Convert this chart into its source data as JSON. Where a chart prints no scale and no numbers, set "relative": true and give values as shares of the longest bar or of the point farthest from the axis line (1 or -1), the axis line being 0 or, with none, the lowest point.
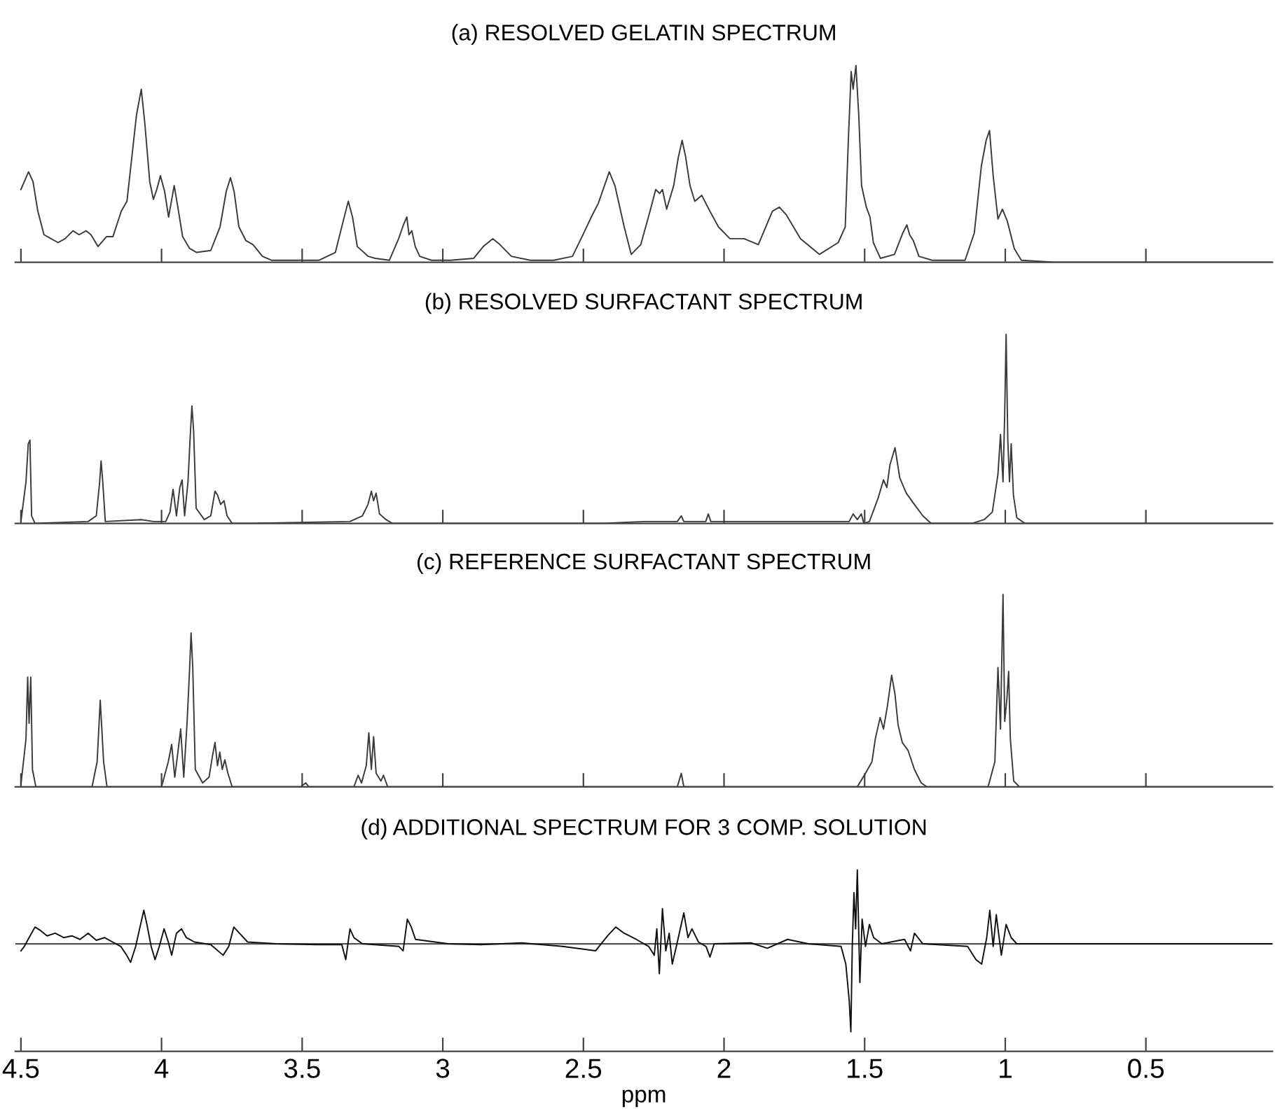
{
  "chart_data": [
    {
      "type": "line",
      "title": "(a) RESOLVED GELATIN SPECTRUM",
      "relative": true,
      "xlim": [
        4.52,
        0.05
      ],
      "xticks": [
        4.5,
        4,
        3.5,
        3,
        2.5,
        2,
        1.5,
        1,
        0.5
      ],
      "tick_labels": false,
      "x": [
        4.5,
        4.473,
        4.457,
        4.44,
        4.418,
        4.393,
        4.368,
        4.343,
        4.315,
        4.293,
        4.268,
        4.251,
        4.226,
        4.196,
        4.173,
        4.143,
        4.123,
        4.109,
        4.089,
        4.072,
        4.059,
        4.042,
        4.029,
        4.017,
        4.004,
        3.989,
        3.975,
        3.955,
        3.942,
        3.925,
        3.9,
        3.875,
        3.825,
        3.792,
        3.77,
        3.755,
        3.742,
        3.725,
        3.7,
        3.675,
        3.641,
        3.608,
        3.441,
        3.382,
        3.354,
        3.336,
        3.321,
        3.304,
        3.265,
        3.24,
        3.19,
        3.157,
        3.14,
        3.128,
        3.12,
        3.11,
        3.098,
        3.082,
        3.04,
        2.973,
        2.89,
        2.856,
        2.822,
        2.797,
        2.756,
        2.689,
        2.605,
        2.539,
        2.505,
        2.472,
        2.447,
        2.408,
        2.388,
        2.355,
        2.33,
        2.296,
        2.263,
        2.243,
        2.229,
        2.219,
        2.204,
        2.179,
        2.163,
        2.149,
        2.137,
        2.121,
        2.104,
        2.079,
        2.054,
        2.02,
        1.979,
        1.929,
        1.878,
        1.828,
        1.803,
        1.778,
        1.728,
        1.661,
        1.594,
        1.569,
        1.558,
        1.548,
        1.541,
        1.531,
        1.521,
        1.511,
        1.494,
        1.481,
        1.469,
        1.444,
        1.394,
        1.364,
        1.35,
        1.34,
        1.327,
        1.307,
        1.26,
        1.143,
        1.11,
        1.085,
        1.068,
        1.056,
        1.043,
        1.026,
        1.01,
        0.993,
        0.968,
        0.943,
        0.826,
        0.05
      ],
      "series": [
        {
          "color": "#3a3a3a",
          "values": [
            0.37,
            0.46,
            0.41,
            0.26,
            0.14,
            0.12,
            0.1,
            0.12,
            0.16,
            0.14,
            0.16,
            0.14,
            0.08,
            0.13,
            0.13,
            0.26,
            0.31,
            0.49,
            0.75,
            0.88,
            0.7,
            0.41,
            0.32,
            0.37,
            0.44,
            0.36,
            0.23,
            0.39,
            0.28,
            0.13,
            0.07,
            0.05,
            0.06,
            0.18,
            0.36,
            0.43,
            0.36,
            0.18,
            0.11,
            0.09,
            0.03,
            0.01,
            0.01,
            0.05,
            0.21,
            0.31,
            0.23,
            0.08,
            0.03,
            0.02,
            0.01,
            0.12,
            0.19,
            0.23,
            0.14,
            0.16,
            0.08,
            0.03,
            0.01,
            0.01,
            0.02,
            0.08,
            0.12,
            0.09,
            0.03,
            0.01,
            0.01,
            0.03,
            0.13,
            0.23,
            0.3,
            0.46,
            0.39,
            0.18,
            0.04,
            0.09,
            0.26,
            0.37,
            0.35,
            0.37,
            0.27,
            0.39,
            0.53,
            0.62,
            0.54,
            0.39,
            0.31,
            0.34,
            0.27,
            0.18,
            0.12,
            0.12,
            0.09,
            0.26,
            0.28,
            0.24,
            0.12,
            0.04,
            0.1,
            0.18,
            0.62,
            0.97,
            0.88,
            1.0,
            0.75,
            0.39,
            0.28,
            0.23,
            0.1,
            0.02,
            0.04,
            0.15,
            0.19,
            0.14,
            0.11,
            0.03,
            0.01,
            0.01,
            0.15,
            0.49,
            0.62,
            0.67,
            0.44,
            0.22,
            0.27,
            0.21,
            0.07,
            0.01,
            0,
            0
          ]
        }
      ]
    },
    {
      "type": "line",
      "title": "(b) RESOLVED SURFACTANT SPECTRUM",
      "relative": true,
      "xlim": [
        4.52,
        0.05
      ],
      "xticks": [
        4.5,
        4,
        3.5,
        3,
        2.5,
        2,
        1.5,
        1,
        0.5
      ],
      "tick_labels": false,
      "x": [
        4.5,
        4.482,
        4.474,
        4.468,
        4.462,
        4.45,
        4.261,
        4.232,
        4.22,
        4.215,
        4.209,
        4.2,
        4.072,
        4.028,
        3.985,
        3.97,
        3.959,
        3.947,
        3.935,
        3.927,
        3.918,
        3.906,
        3.897,
        3.892,
        3.886,
        3.877,
        3.848,
        3.825,
        3.81,
        3.801,
        3.79,
        3.778,
        3.767,
        3.749,
        3.679,
        3.33,
        3.286,
        3.266,
        3.254,
        3.246,
        3.237,
        3.225,
        3.202,
        3.179,
        2.428,
        2.283,
        2.166,
        2.152,
        2.143,
        2.065,
        2.056,
        2.047,
        1.701,
        1.555,
        1.541,
        1.526,
        1.512,
        1.503,
        1.483,
        1.453,
        1.433,
        1.421,
        1.41,
        1.392,
        1.375,
        1.352,
        1.323,
        1.293,
        1.264,
        1.119,
        1.075,
        1.046,
        1.026,
        1.017,
        1.008,
        1.002,
        0.997,
        0.991,
        0.985,
        0.979,
        0.971,
        0.959,
        0.93,
        0.05
      ],
      "series": [
        {
          "color": "#3a3a3a",
          "values": [
            0.01,
            0.22,
            0.42,
            0.44,
            0.04,
            0,
            0.01,
            0.04,
            0.22,
            0.33,
            0.22,
            0.01,
            0.02,
            0.01,
            0.01,
            0.06,
            0.18,
            0.04,
            0.19,
            0.23,
            0.04,
            0.22,
            0.49,
            0.62,
            0.49,
            0.08,
            0.02,
            0.04,
            0.17,
            0.15,
            0.1,
            0.12,
            0.04,
            0,
            0,
            0.01,
            0.04,
            0.1,
            0.17,
            0.12,
            0.16,
            0.05,
            0.02,
            0,
            0,
            0.01,
            0.01,
            0.04,
            0.01,
            0.01,
            0.05,
            0.01,
            0.01,
            0.01,
            0.05,
            0.02,
            0.05,
            0,
            0.01,
            0.13,
            0.23,
            0.19,
            0.31,
            0.4,
            0.24,
            0.16,
            0.1,
            0.04,
            0,
            0,
            0.02,
            0.06,
            0.26,
            0.47,
            0.22,
            0.58,
            1.0,
            0.44,
            0.22,
            0.42,
            0.15,
            0.03,
            0,
            0
          ]
        }
      ]
    },
    {
      "type": "line",
      "title": "(c) REFERENCE SURFACTANT SPECTRUM",
      "relative": true,
      "xlim": [
        4.52,
        0.05
      ],
      "xticks": [
        4.5,
        4,
        3.5,
        3,
        2.5,
        2,
        1.5,
        1,
        0.5
      ],
      "tick_labels": false,
      "x": [
        4.5,
        4.482,
        4.476,
        4.471,
        4.465,
        4.459,
        4.447,
        4.247,
        4.229,
        4.218,
        4.206,
        4.194,
        4.0,
        3.976,
        3.964,
        3.953,
        3.941,
        3.932,
        3.921,
        3.909,
        3.9,
        3.895,
        3.889,
        3.88,
        3.854,
        3.831,
        3.819,
        3.81,
        3.801,
        3.793,
        3.784,
        3.775,
        3.764,
        3.749,
        3.505,
        3.487,
        3.476,
        3.316,
        3.301,
        3.289,
        3.272,
        3.263,
        3.254,
        3.246,
        3.237,
        3.22,
        3.211,
        3.196,
        2.166,
        2.152,
        2.143,
        1.526,
        1.497,
        1.474,
        1.462,
        1.445,
        1.433,
        1.419,
        1.404,
        1.392,
        1.381,
        1.366,
        1.346,
        1.323,
        1.299,
        1.279,
        1.061,
        1.037,
        1.026,
        1.017,
        1.008,
        1.002,
        0.994,
        0.988,
        0.982,
        0.97,
        0.95,
        0.05
      ],
      "series": [
        {
          "color": "#3a3a3a",
          "values": [
            0.01,
            0.25,
            0.57,
            0.33,
            0.57,
            0.09,
            0,
            0,
            0.13,
            0.45,
            0.13,
            0,
            0,
            0.13,
            0.22,
            0.05,
            0.19,
            0.3,
            0.05,
            0.34,
            0.62,
            0.8,
            0.62,
            0.09,
            0.02,
            0.05,
            0.16,
            0.23,
            0.11,
            0.18,
            0.09,
            0.14,
            0.07,
            0,
            0,
            0.02,
            0,
            0,
            0.06,
            0.02,
            0.11,
            0.28,
            0.09,
            0.26,
            0.07,
            0.03,
            0.06,
            0,
            0,
            0.07,
            0,
            0,
            0.07,
            0.13,
            0.25,
            0.36,
            0.3,
            0.42,
            0.58,
            0.48,
            0.32,
            0.23,
            0.19,
            0.09,
            0.02,
            0,
            0,
            0.13,
            0.62,
            0.3,
            1.0,
            0.34,
            0.46,
            0.6,
            0.25,
            0.03,
            0,
            0
          ]
        }
      ]
    },
    {
      "type": "line",
      "title": "(d) ADDITIONAL SPECTRUM FOR 3 COMP. SOLUTION",
      "xlabel": "ppm",
      "relative": true,
      "xlim": [
        4.52,
        0.05
      ],
      "xticks": [
        4.5,
        4,
        3.5,
        3,
        2.5,
        2,
        1.5,
        1,
        0.5
      ],
      "tick_labels": "x",
      "ref_lines": [
        {
          "axis": "y",
          "value": 0,
          "color": "#555555"
        }
      ],
      "x": [
        4.5,
        4.488,
        4.471,
        4.45,
        4.43,
        4.407,
        4.378,
        4.348,
        4.319,
        4.29,
        4.261,
        4.232,
        4.203,
        4.174,
        4.145,
        4.124,
        4.11,
        4.092,
        4.078,
        4.063,
        4.052,
        4.037,
        4.023,
        4.008,
        3.991,
        3.976,
        3.964,
        3.947,
        3.929,
        3.912,
        3.883,
        3.825,
        3.781,
        3.761,
        3.743,
        3.723,
        3.694,
        3.592,
        3.447,
        3.359,
        3.345,
        3.33,
        3.316,
        3.286,
        3.156,
        3.141,
        3.126,
        3.112,
        3.097,
        2.981,
        2.865,
        2.719,
        2.574,
        2.457,
        2.414,
        2.385,
        2.355,
        2.312,
        2.268,
        2.248,
        2.239,
        2.23,
        2.219,
        2.207,
        2.195,
        2.184,
        2.166,
        2.143,
        2.128,
        2.114,
        2.091,
        2.064,
        2.05,
        2.035,
        1.904,
        1.846,
        1.774,
        1.701,
        1.584,
        1.567,
        1.555,
        1.549,
        1.544,
        1.538,
        1.532,
        1.526,
        1.517,
        1.509,
        1.497,
        1.483,
        1.468,
        1.439,
        1.358,
        1.337,
        1.323,
        1.293,
        1.134,
        1.104,
        1.084,
        1.066,
        1.055,
        1.043,
        1.032,
        1.014,
        0.997,
        0.979,
        0.959,
        0.537,
        0.05
      ],
      "series": [
        {
          "color": "#111111",
          "values": [
            -0.08,
            -0.03,
            0.07,
            0.19,
            0.15,
            0.09,
            0.12,
            0.07,
            0.09,
            0.05,
            0.12,
            0.04,
            0.07,
            0.02,
            -0.03,
            -0.13,
            -0.21,
            -0.03,
            0.17,
            0.38,
            0.22,
            -0.03,
            -0.18,
            -0.03,
            0.17,
            0.02,
            -0.13,
            0.12,
            0.17,
            0.07,
            0.02,
            -0.01,
            -0.13,
            -0.03,
            0.19,
            0.12,
            0.02,
            0,
            -0.01,
            -0.01,
            -0.18,
            0.17,
            0.07,
            0,
            -0.03,
            -0.08,
            0.28,
            0.19,
            0.05,
            0,
            -0.01,
            0.01,
            -0.03,
            -0.08,
            0.09,
            0.19,
            0.12,
            0.05,
            -0.03,
            -0.13,
            0.17,
            -0.34,
            0.4,
            -0.08,
            0.12,
            -0.23,
            0.02,
            0.35,
            0.07,
            0.17,
            0.02,
            -0.03,
            -0.15,
            0,
            0.01,
            -0.05,
            0.05,
            0,
            -0.03,
            -0.23,
            -0.64,
            -1.0,
            -0.03,
            0.58,
            0.17,
            0.84,
            -0.44,
            0.28,
            -0.03,
            0.22,
            0.07,
            0,
            0.05,
            -0.08,
            0.12,
            0,
            -0.03,
            -0.18,
            -0.23,
            0.07,
            0.38,
            -0.03,
            0.33,
            -0.13,
            0.22,
            0.07,
            0,
            0,
            0
          ]
        }
      ]
    }
  ]
}
